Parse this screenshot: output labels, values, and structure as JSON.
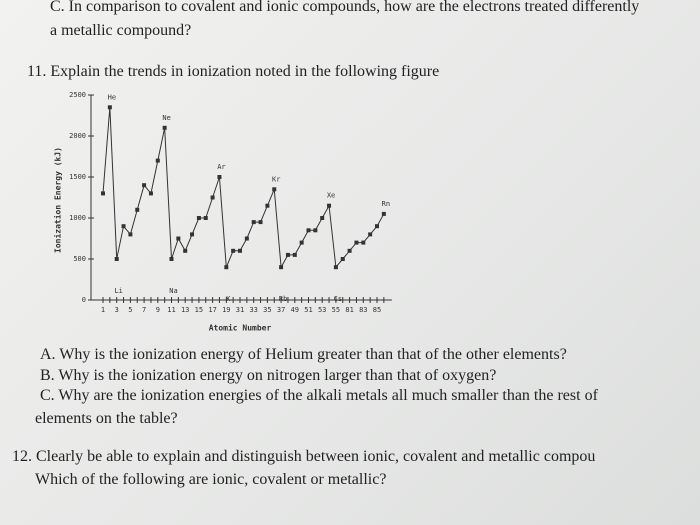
{
  "question_c_top": {
    "line1": "C. In comparison to covalent and ionic compounds, how are the electrons treated differently",
    "line2": "a metallic compound?"
  },
  "question_11": {
    "title": "11. Explain the trends in ionization noted in the following figure",
    "parts": [
      "A. Why is the ionization energy of Helium greater than that of the other elements?",
      "B. Why is the ionization energy on nitrogen larger than that of oxygen?",
      "C. Why are the ionization energies of the alkali metals all much smaller than the rest of"
    ],
    "continuation": "elements on the table?"
  },
  "question_12": {
    "line1": "12. Clearly be able to explain and distinguish between ionic, covalent and metallic compou",
    "line2": "Which of the following are ionic, covalent or metallic?"
  },
  "chart_data": {
    "type": "line",
    "xlabel": "Atomic Number",
    "ylabel": "Ionization Energy (kJ)",
    "categories": [
      1,
      null,
      3,
      null,
      5,
      null,
      7,
      null,
      9,
      null,
      11,
      null,
      13,
      null,
      15,
      null,
      17,
      null,
      19,
      null,
      31,
      null,
      33,
      null,
      35,
      null,
      37,
      null,
      49,
      null,
      51,
      null,
      53,
      null,
      55,
      null,
      81,
      null,
      83,
      null,
      85,
      null
    ],
    "values": [
      1300,
      2350,
      500,
      900,
      800,
      1100,
      1400,
      1300,
      1700,
      2100,
      500,
      750,
      600,
      800,
      1000,
      1000,
      1250,
      1500,
      400,
      600,
      600,
      750,
      950,
      950,
      1150,
      1350,
      400,
      550,
      550,
      700,
      850,
      850,
      1000,
      1150,
      400,
      500,
      600,
      700,
      700,
      800,
      900,
      1050
    ],
    "point_labels": [
      null,
      "He",
      "Li",
      null,
      null,
      null,
      null,
      null,
      null,
      "Ne",
      "Na",
      null,
      null,
      null,
      null,
      null,
      null,
      "Ar",
      "K",
      null,
      null,
      null,
      null,
      null,
      null,
      "Kr",
      "Rb",
      null,
      null,
      null,
      null,
      null,
      null,
      "Xe",
      "Cs",
      null,
      null,
      null,
      null,
      null,
      null,
      "Rn"
    ],
    "color": "#333333",
    "ylim": [
      0,
      2500
    ],
    "yticks": [
      0,
      500,
      1000,
      1500,
      2000,
      2500
    ]
  }
}
